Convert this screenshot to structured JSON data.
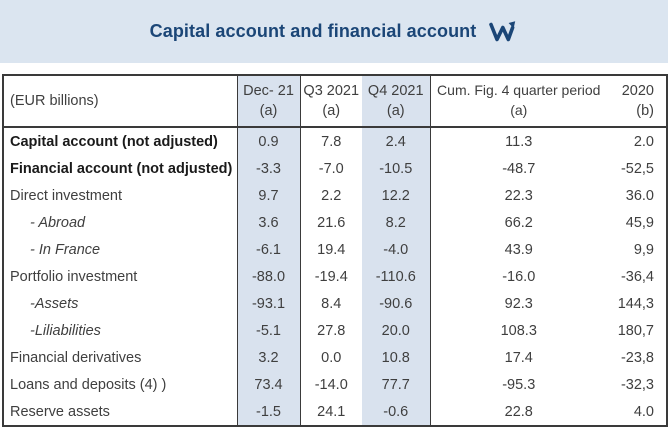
{
  "banner": {
    "title": "Capital account and financial account",
    "logo_icon": "w-trend-arrow-logo"
  },
  "colors": {
    "banner_bg": "#dbe5f0",
    "column_shade": "#d9e2ee",
    "title_navy": "#1b4677",
    "border_dark": "#3a3a3a",
    "text": "#3f3f3f",
    "bold_text": "#1a1a1a"
  },
  "chart_data": {
    "type": "table",
    "title": "Capital account and financial account",
    "unit_label": "(EUR billions)",
    "column_headers": [
      {
        "label": "Dec- 21",
        "note": "(a)",
        "shaded": true
      },
      {
        "label": "Q3 2021",
        "note": "(a)",
        "shaded": false
      },
      {
        "label": "Q4 2021",
        "note": "(a)",
        "shaded": true
      },
      {
        "label": "Cum. Fig. 4 quarter period",
        "note": "(a)",
        "shaded": false
      },
      {
        "label": "2020",
        "note": "(b)",
        "shaded": false
      }
    ],
    "rows": [
      {
        "label": "Capital account (not adjusted)",
        "style": "bold",
        "values": [
          "0.9",
          "7.8",
          "2.4",
          "11.3",
          "2.0"
        ]
      },
      {
        "label": "Financial account (not adjusted)",
        "style": "bold",
        "values": [
          "-3.3",
          "-7.0",
          "-10.5",
          "-48.7",
          "-52,5"
        ]
      },
      {
        "label": "Direct investment",
        "style": "normal",
        "values": [
          "9.7",
          "2.2",
          "12.2",
          "22.3",
          "36.0"
        ]
      },
      {
        "label": "- Abroad",
        "style": "italic",
        "values": [
          "3.6",
          "21.6",
          "8.2",
          "66.2",
          "45,9"
        ]
      },
      {
        "label": "- In France",
        "style": "italic",
        "values": [
          "-6.1",
          "19.4",
          "-4.0",
          "43.9",
          "9,9"
        ]
      },
      {
        "label": "Portfolio investment",
        "style": "normal",
        "values": [
          "-88.0",
          "-19.4",
          "-110.6",
          "-16.0",
          "-36,4"
        ]
      },
      {
        "label": "-Assets",
        "style": "italic",
        "values": [
          "-93.1",
          "8.4",
          "-90.6",
          "92.3",
          "144,3"
        ]
      },
      {
        "label": "-Liliabilities",
        "style": "italic",
        "values": [
          "-5.1",
          "27.8",
          "20.0",
          "108.3",
          "180,7"
        ]
      },
      {
        "label": "Financial derivatives",
        "style": "normal",
        "values": [
          "3.2",
          "0.0",
          "10.8",
          "17.4",
          "-23,8"
        ]
      },
      {
        "label": "Loans and deposits (4) )",
        "style": "normal",
        "values": [
          "73.4",
          "-14.0",
          "77.7",
          "-95.3",
          "-32,3"
        ]
      },
      {
        "label": "Reserve assets",
        "style": "normal",
        "values": [
          "-1.5",
          "24.1",
          "-0.6",
          "22.8",
          "4.0"
        ]
      }
    ]
  }
}
